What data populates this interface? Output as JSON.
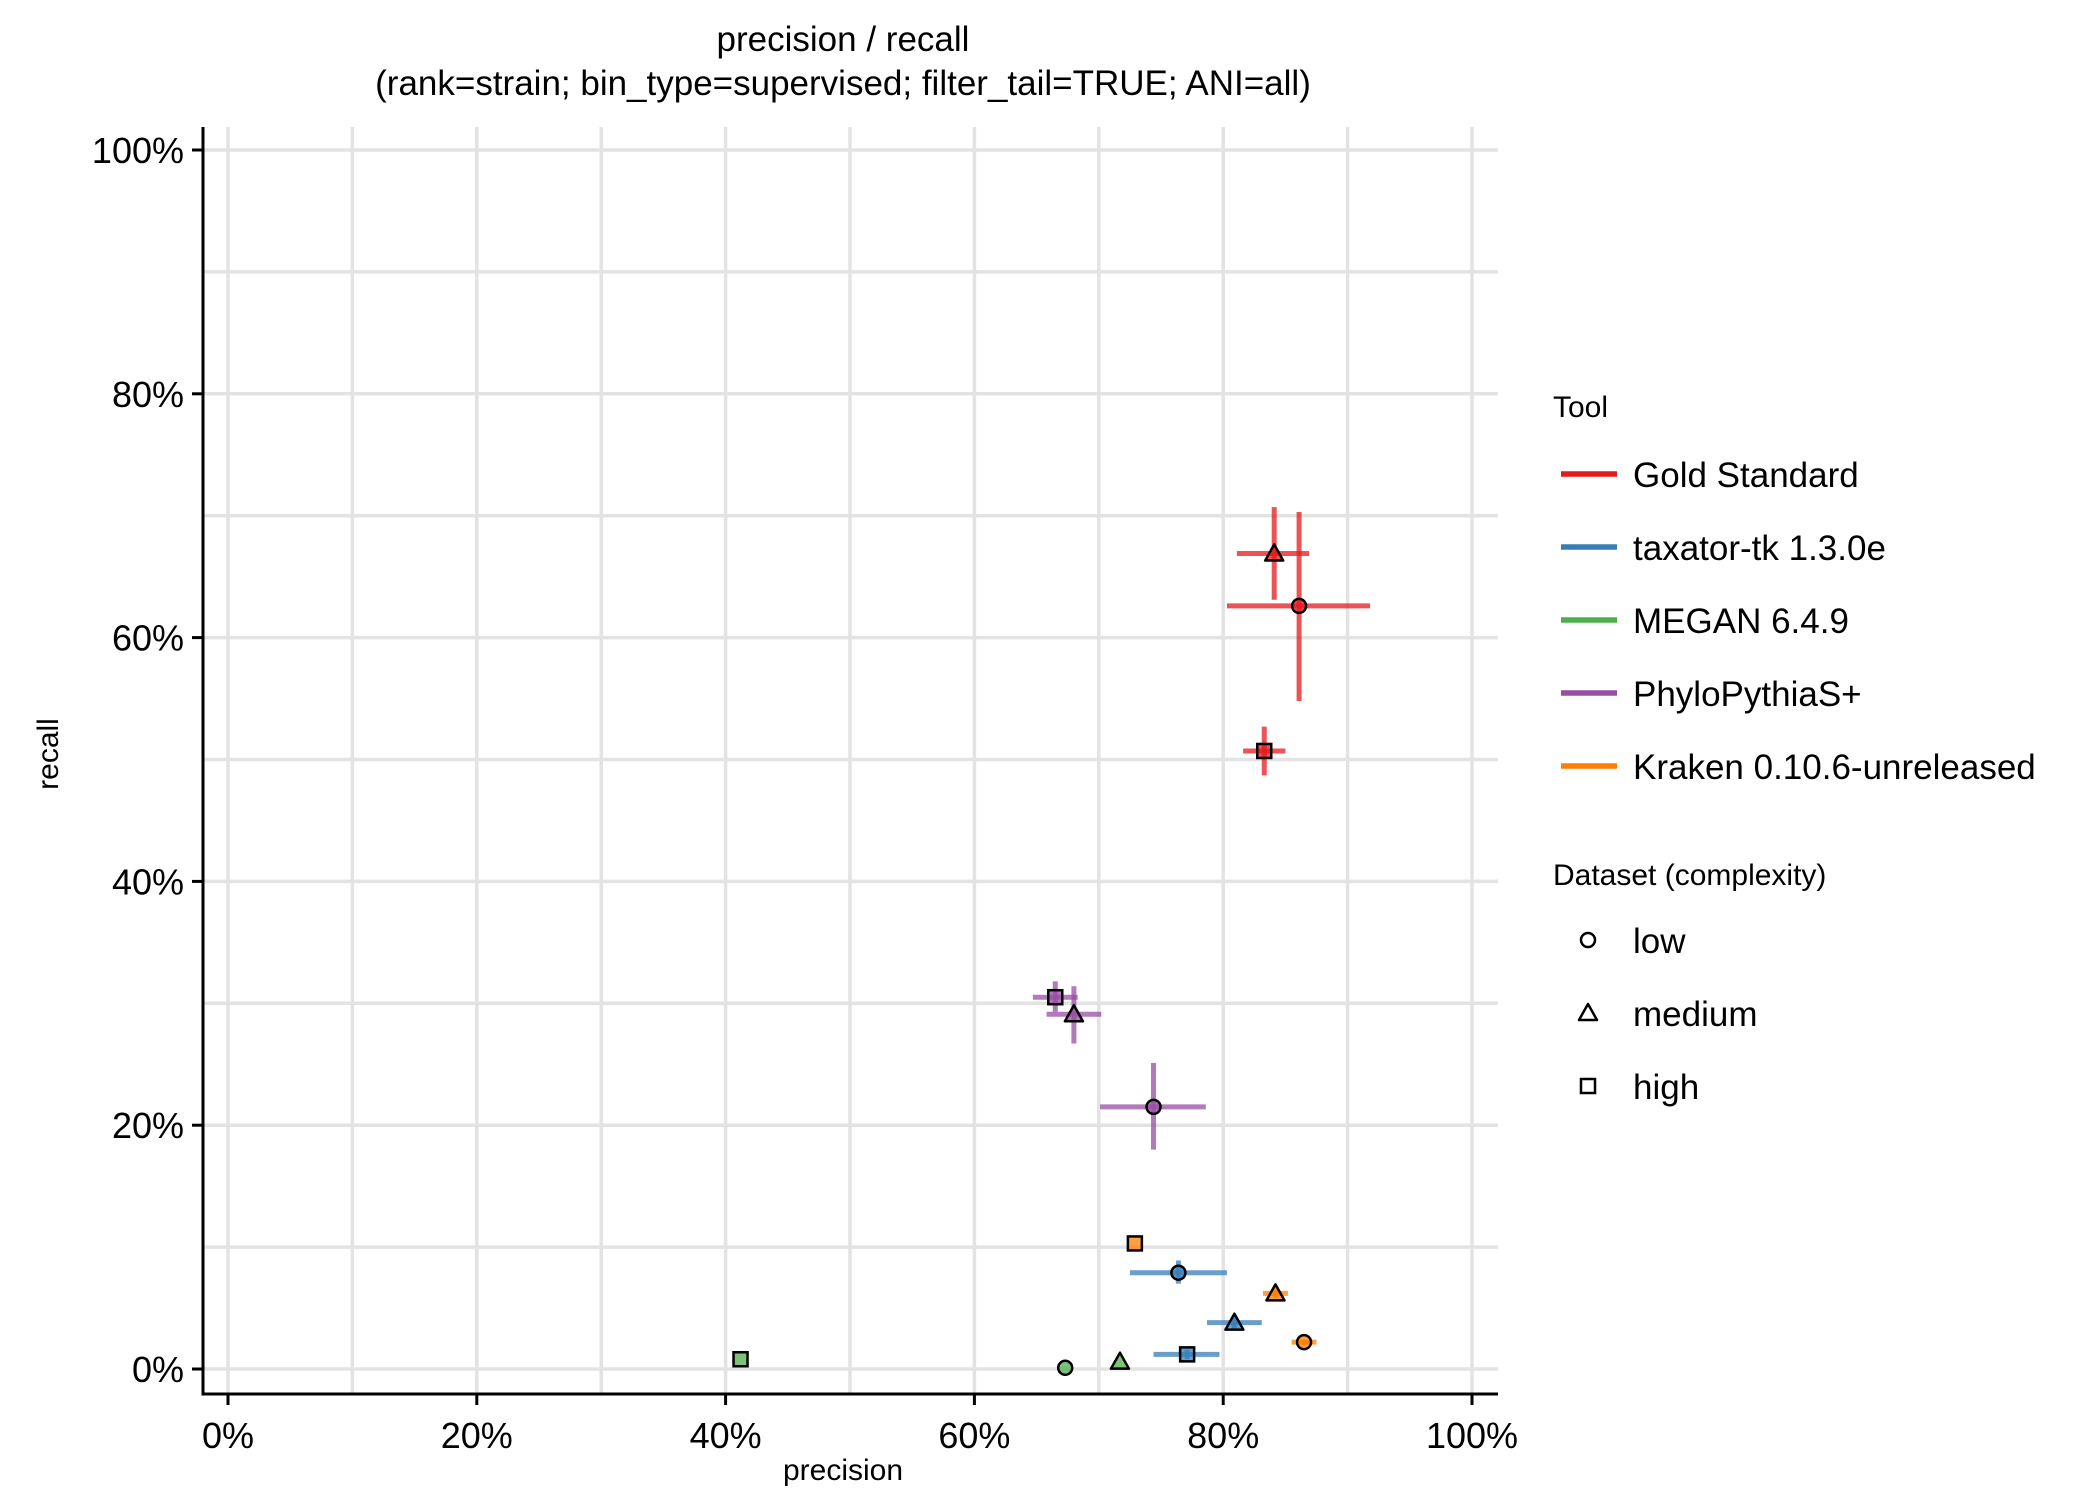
{
  "chart_data": {
    "type": "scatter",
    "title": "precision / recall",
    "subtitle": "(rank=strain; bin_type=supervised; filter_tail=TRUE; ANI=all)",
    "xlabel": "precision",
    "ylabel": "recall",
    "xlim": [
      -0.02,
      1.02
    ],
    "ylim": [
      -0.02,
      1.02
    ],
    "x_ticks": [
      0,
      0.2,
      0.4,
      0.6,
      0.8,
      1.0
    ],
    "x_tick_labels": [
      "0%",
      "20%",
      "40%",
      "60%",
      "80%",
      "100%"
    ],
    "y_ticks": [
      0,
      0.2,
      0.4,
      0.6,
      0.8,
      1.0
    ],
    "y_tick_labels": [
      "0%",
      "20%",
      "40%",
      "60%",
      "80%",
      "100%"
    ],
    "grid": true,
    "legend_placement": "right",
    "legend_tool_title": "Tool",
    "legend_dataset_title": "Dataset (complexity)",
    "tools": [
      {
        "name": "Gold Standard",
        "color": "#e41a1c"
      },
      {
        "name": "taxator-tk 1.3.0e",
        "color": "#377eb8"
      },
      {
        "name": "MEGAN 6.4.9",
        "color": "#4daf4a"
      },
      {
        "name": "PhyloPythiaS+",
        "color": "#984ea3"
      },
      {
        "name": "Kraken 0.10.6-unreleased",
        "color": "#ff7f00"
      }
    ],
    "datasets": [
      {
        "name": "low",
        "shape": "circle"
      },
      {
        "name": "medium",
        "shape": "triangle"
      },
      {
        "name": "high",
        "shape": "square"
      }
    ],
    "points": [
      {
        "tool": "Gold Standard",
        "dataset": "medium",
        "precision": 0.841,
        "recall": 0.669,
        "x_err": [
          0.811,
          0.869
        ],
        "y_err": [
          0.631,
          0.707
        ]
      },
      {
        "tool": "Gold Standard",
        "dataset": "low",
        "precision": 0.861,
        "recall": 0.626,
        "x_err": [
          0.803,
          0.918
        ],
        "y_err": [
          0.548,
          0.703
        ]
      },
      {
        "tool": "Gold Standard",
        "dataset": "high",
        "precision": 0.833,
        "recall": 0.507,
        "x_err": [
          0.816,
          0.85
        ],
        "y_err": [
          0.487,
          0.527
        ]
      },
      {
        "tool": "PhyloPythiaS+",
        "dataset": "high",
        "precision": 0.665,
        "recall": 0.305,
        "x_err": [
          0.647,
          0.683
        ],
        "y_err": [
          0.293,
          0.318
        ]
      },
      {
        "tool": "PhyloPythiaS+",
        "dataset": "medium",
        "precision": 0.68,
        "recall": 0.291,
        "x_err": [
          0.658,
          0.702
        ],
        "y_err": [
          0.267,
          0.314
        ]
      },
      {
        "tool": "PhyloPythiaS+",
        "dataset": "low",
        "precision": 0.744,
        "recall": 0.215,
        "x_err": [
          0.701,
          0.786
        ],
        "y_err": [
          0.18,
          0.251
        ]
      },
      {
        "tool": "Kraken 0.10.6-unreleased",
        "dataset": "high",
        "precision": 0.729,
        "recall": 0.103,
        "x_err": [
          0.729,
          0.729
        ],
        "y_err": [
          0.103,
          0.103
        ]
      },
      {
        "tool": "taxator-tk 1.3.0e",
        "dataset": "low",
        "precision": 0.764,
        "recall": 0.079,
        "x_err": [
          0.725,
          0.803
        ],
        "y_err": [
          0.07,
          0.089
        ]
      },
      {
        "tool": "Kraken 0.10.6-unreleased",
        "dataset": "medium",
        "precision": 0.842,
        "recall": 0.062,
        "x_err": [
          0.832,
          0.852
        ],
        "y_err": [
          0.058,
          0.066
        ]
      },
      {
        "tool": "taxator-tk 1.3.0e",
        "dataset": "medium",
        "precision": 0.809,
        "recall": 0.038,
        "x_err": [
          0.787,
          0.831
        ],
        "y_err": [
          0.032,
          0.044
        ]
      },
      {
        "tool": "Kraken 0.10.6-unreleased",
        "dataset": "low",
        "precision": 0.865,
        "recall": 0.022,
        "x_err": [
          0.855,
          0.875
        ],
        "y_err": [
          0.02,
          0.024
        ]
      },
      {
        "tool": "taxator-tk 1.3.0e",
        "dataset": "high",
        "precision": 0.771,
        "recall": 0.012,
        "x_err": [
          0.744,
          0.797
        ],
        "y_err": [
          0.008,
          0.016
        ]
      },
      {
        "tool": "MEGAN 6.4.9",
        "dataset": "high",
        "precision": 0.412,
        "recall": 0.008,
        "x_err": [
          0.412,
          0.412
        ],
        "y_err": [
          0.008,
          0.008
        ]
      },
      {
        "tool": "MEGAN 6.4.9",
        "dataset": "low",
        "precision": 0.673,
        "recall": 0.001,
        "x_err": [
          0.673,
          0.673
        ],
        "y_err": [
          0.001,
          0.001
        ]
      },
      {
        "tool": "MEGAN 6.4.9",
        "dataset": "medium",
        "precision": 0.717,
        "recall": 0.006,
        "x_err": [
          0.717,
          0.717
        ],
        "y_err": [
          0.006,
          0.006
        ]
      }
    ]
  }
}
